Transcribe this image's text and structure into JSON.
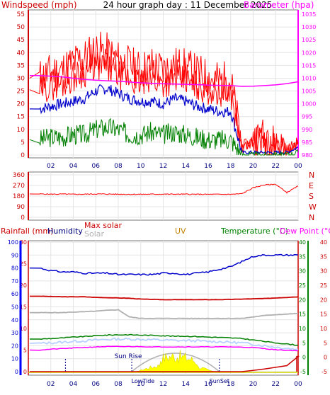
{
  "header": {
    "left_title": "Windspeed (mph)",
    "center_title": "24 hour graph day : 11 December 2025",
    "right_title": "Barometer (hpa)"
  },
  "colors": {
    "red": "#ff0000",
    "darkred": "#cc0000",
    "blue": "#0000cc",
    "green": "#008000",
    "magenta": "#ff00ff",
    "gray": "#b0b0b0",
    "lightblue": "#b8d0ff",
    "yellow": "#ffff00",
    "orange": "#c08000",
    "axis_blue": "#0000ff"
  },
  "x_ticks": [
    "02",
    "04",
    "06",
    "08",
    "10",
    "12",
    "14",
    "16",
    "18",
    "20",
    "22",
    "00"
  ],
  "wind_chart": {
    "left_ticks": [
      "0",
      "5",
      "10",
      "15",
      "20",
      "25",
      "30",
      "35",
      "40",
      "45",
      "50",
      "55"
    ],
    "right_ticks": [
      "980",
      "985",
      "990",
      "995",
      "1000",
      "1005",
      "1010",
      "1015",
      "1020",
      "1025",
      "1030",
      "1035"
    ]
  },
  "dir_chart": {
    "left_ticks": [
      "0",
      "90",
      "180",
      "270",
      "360"
    ],
    "right_labels": [
      "N",
      "W",
      "S",
      "E",
      "N"
    ]
  },
  "bottom_chart": {
    "labels": {
      "rainfall": "Rainfall (mm)",
      "humidity": "Humidity",
      "max_solar": "Max solar",
      "solar": "Solar",
      "uv": "UV",
      "temperature": "Temperature (°C)",
      "dew_point": "Dew Point (°C)"
    },
    "humidity_ticks": [
      "0",
      "10",
      "20",
      "30",
      "40",
      "50",
      "60",
      "70",
      "80",
      "90",
      "100"
    ],
    "rain_ticks": [
      "0",
      "5",
      "10",
      "15",
      "20",
      "25",
      "30"
    ],
    "temp_ticks": [
      "-5",
      "0",
      "5",
      "10",
      "15",
      "20",
      "25",
      "30",
      "35",
      "40"
    ],
    "dew_ticks": [
      "-5",
      "0",
      "5",
      "10",
      "15",
      "20",
      "25",
      "30",
      "35",
      "40"
    ],
    "annotations": {
      "sun_rise": "Sun Rise",
      "low_tide": "LowTide",
      "sun_set": "SunSet"
    }
  },
  "chart_data": [
    {
      "type": "line",
      "title": "Windspeed (mph)",
      "x": [
        "01",
        "02",
        "03",
        "04",
        "05",
        "06",
        "07",
        "08",
        "09",
        "10",
        "11",
        "12",
        "13",
        "14",
        "15",
        "16",
        "17",
        "18",
        "19",
        "20",
        "21",
        "22",
        "23",
        "00"
      ],
      "ylim": [
        0,
        55
      ],
      "y2lim": [
        980,
        1035
      ],
      "series": [
        {
          "name": "Windspeed (mph)",
          "role": "gust",
          "color": "#ff0000",
          "values": [
            30,
            32,
            33,
            36,
            38,
            41,
            40,
            37,
            35,
            33,
            35,
            33,
            35,
            34,
            32,
            30,
            29,
            29,
            3,
            6,
            7,
            4,
            2,
            5
          ]
        },
        {
          "name": "Windspeed (mph)",
          "role": "average",
          "color": "#0000cc",
          "values": [
            18,
            19,
            20,
            21,
            22,
            25,
            26,
            24,
            22,
            21,
            21,
            20,
            22,
            21,
            19,
            18,
            17,
            17,
            1,
            1,
            1,
            1,
            1,
            3
          ]
        },
        {
          "name": "Windspeed (mph)",
          "role": "lull",
          "color": "#008000",
          "values": [
            6,
            7,
            7,
            8,
            8,
            10,
            11,
            10,
            8,
            8,
            9,
            8,
            9,
            8,
            7,
            6,
            6,
            6,
            0,
            0,
            0,
            0,
            0,
            1
          ]
        },
        {
          "name": "Barometer (hpa)",
          "axis": "right",
          "color": "#ff00ff",
          "values": [
            1011,
            1010.8,
            1010.5,
            1010,
            1009.5,
            1009.2,
            1009,
            1008.8,
            1008.5,
            1008.2,
            1008,
            1007.8,
            1007.7,
            1007.6,
            1007.5,
            1007.3,
            1007.2,
            1007.1,
            1006.8,
            1006.9,
            1007.1,
            1007.4,
            1007.9,
            1008.6
          ]
        }
      ]
    },
    {
      "type": "scatter",
      "title": "Wind direction",
      "x": [
        "01",
        "02",
        "03",
        "04",
        "05",
        "06",
        "07",
        "08",
        "09",
        "10",
        "11",
        "12",
        "13",
        "14",
        "15",
        "16",
        "17",
        "18",
        "19",
        "20",
        "21",
        "22",
        "23",
        "00"
      ],
      "ylim": [
        0,
        360
      ],
      "series": [
        {
          "name": "Wind direction",
          "color": "#ff0000",
          "values": [
            198,
            196,
            197,
            195,
            196,
            198,
            197,
            196,
            195,
            195,
            196,
            196,
            196,
            196,
            195,
            195,
            195,
            195,
            200,
            250,
            275,
            280,
            210,
            265
          ]
        }
      ]
    },
    {
      "type": "line",
      "title": "Weather",
      "x": [
        "01",
        "02",
        "03",
        "04",
        "05",
        "06",
        "07",
        "08",
        "09",
        "10",
        "11",
        "12",
        "13",
        "14",
        "15",
        "16",
        "17",
        "18",
        "19",
        "20",
        "21",
        "22",
        "23",
        "00"
      ],
      "series": [
        {
          "name": "Humidity",
          "axis": "humidity",
          "ylim": [
            0,
            100
          ],
          "color": "#0000cc",
          "values": [
            80,
            78,
            77,
            77,
            76,
            76,
            76,
            75,
            75,
            75,
            75,
            76,
            76,
            75,
            76,
            77,
            79,
            81,
            85,
            89,
            90,
            90,
            90,
            90
          ]
        },
        {
          "name": "Rainfall (mm)",
          "axis": "rain",
          "ylim": [
            0,
            30
          ],
          "color": "#cc0000",
          "values": [
            0,
            0,
            0,
            0,
            0,
            0,
            0,
            0,
            0,
            0,
            0,
            0,
            0,
            0,
            0,
            0,
            0,
            0,
            0,
            0.3,
            0.6,
            1.0,
            1.4,
            3.5
          ]
        },
        {
          "name": "Temperature (°C)",
          "axis": "temp",
          "ylim": [
            -5,
            40
          ],
          "color": "#008000",
          "values": [
            6.3,
            6.5,
            6.7,
            7,
            7.2,
            7.5,
            7.7,
            7.8,
            7.8,
            7.7,
            7.6,
            7.5,
            7.3,
            7.3,
            7.2,
            7,
            6.9,
            6.7,
            6.5,
            6,
            5.5,
            5,
            4.6,
            4.2
          ]
        },
        {
          "name": "Dew Point (°C)",
          "axis": "temp",
          "ylim": [
            -5,
            40
          ],
          "color": "#ff00ff",
          "values": [
            2.5,
            2.8,
            3.0,
            3.2,
            3.4,
            3.6,
            3.7,
            3.7,
            3.7,
            3.7,
            3.6,
            3.6,
            3.6,
            3.6,
            3.6,
            3.6,
            3.6,
            3.6,
            3.5,
            3.4,
            3.0,
            2.6,
            2.4,
            2.3
          ]
        },
        {
          "name": "Solar",
          "axis": "temp",
          "ylim": [
            -5,
            40
          ],
          "color": "#b0b0b0",
          "values": [
            15.5,
            15.5,
            15.5,
            15.7,
            15.8,
            16,
            16.3,
            16.5,
            14,
            13.5,
            13.5,
            13.5,
            13.5,
            13.5,
            13.5,
            13.5,
            13.5,
            13.5,
            13.5,
            14,
            14.5,
            14.8,
            15,
            15.2
          ]
        },
        {
          "name": "Max solar",
          "axis": "temp",
          "ylim": [
            -5,
            40
          ],
          "color": "#cc0000",
          "values": [
            21.2,
            21.1,
            21,
            21,
            21,
            20.8,
            20.7,
            20.6,
            20.5,
            20.2,
            20.1,
            20,
            20,
            20,
            20,
            20,
            20,
            20.1,
            20.2,
            20.3,
            20.4,
            20.6,
            20.8,
            21
          ]
        }
      ]
    }
  ]
}
